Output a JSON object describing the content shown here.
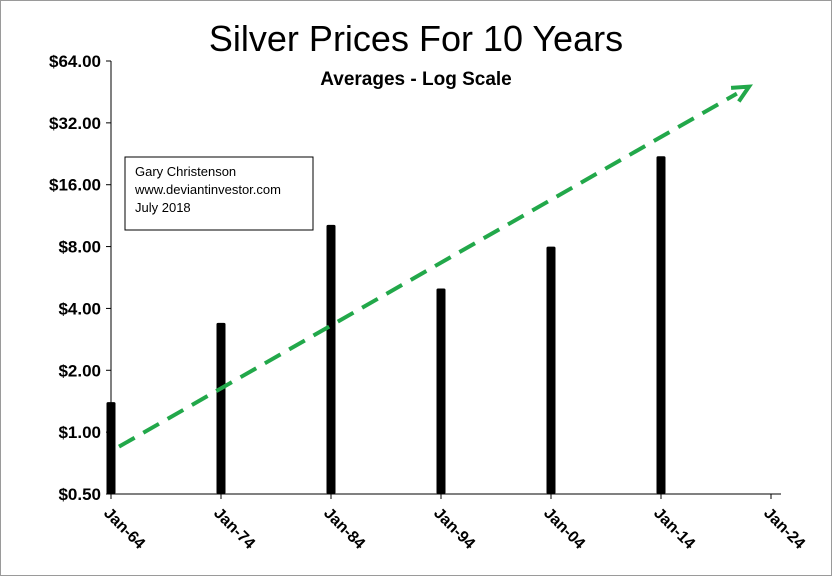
{
  "chart_data": {
    "type": "bar",
    "title": "Silver Prices For 10 Years",
    "subtitle": "Averages - Log Scale",
    "xlabel": "",
    "ylabel": "",
    "y_scale": "log2",
    "ylim": [
      0.5,
      64
    ],
    "y_ticks": [
      0.5,
      1,
      2,
      4,
      8,
      16,
      32,
      64
    ],
    "y_tick_labels": [
      "$0.50",
      "$1.00",
      "$2.00",
      "$4.00",
      "$8.00",
      "$16.00",
      "$32.00",
      "$64.00"
    ],
    "x_ticks": [
      "Jan-64",
      "Jan-74",
      "Jan-84",
      "Jan-94",
      "Jan-04",
      "Jan-14",
      "Jan-24"
    ],
    "categories": [
      "Jan-64",
      "Jan-74",
      "Jan-84",
      "Jan-94",
      "Jan-04",
      "Jan-14"
    ],
    "values": [
      1.4,
      3.4,
      10.2,
      5.0,
      8.0,
      22.0
    ],
    "bar_color": "#000000",
    "trend_line": {
      "style": "dashed-arrow",
      "color": "#22a84a",
      "start": {
        "x": "Jan-64",
        "y": 0.85
      },
      "end": {
        "x": "Jan-24",
        "y": 48
      }
    },
    "grid": false,
    "legend": "none",
    "annotation": {
      "lines": [
        "Gary Christenson",
        "www.deviantinvestor.com",
        "July 2018"
      ],
      "placement": "upper-left"
    }
  }
}
